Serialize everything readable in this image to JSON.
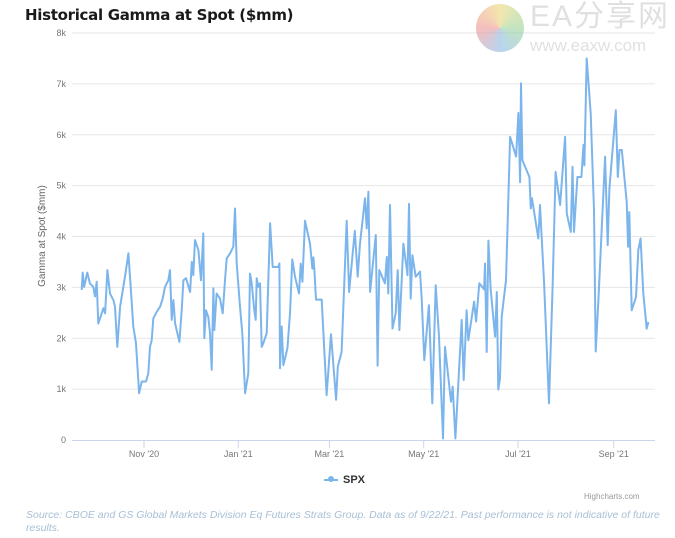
{
  "header": {
    "title": "Historical Gamma at Spot ($mm)"
  },
  "legend": {
    "label": "SPX"
  },
  "credits": "Highcharts.com",
  "source": "Source: CBOE and GS Global Markets Division Eq Futures Strats Group. Data as of 9/22/21. Past performance is not indicative of future results.",
  "watermark": {
    "line1": "EA分享网",
    "line2": "www.eaxw.com"
  },
  "colors": {
    "series": "#7cb5ec",
    "grid": "#e6e6e6",
    "axis": "#ccd6eb"
  },
  "chart_data": {
    "type": "line",
    "title": "Historical Gamma at Spot ($mm)",
    "xlabel": "",
    "ylabel": "Gamma at Spot ($mm)",
    "x_unit": "days since Nov 1, 2020",
    "xlim": [
      -46.6,
      330.7
    ],
    "ylim": [
      0,
      8000
    ],
    "grid": true,
    "legend_position": "bottom-center",
    "x_ticks": [
      {
        "label": "Nov '20",
        "value": 0
      },
      {
        "label": "Jan '21",
        "value": 61
      },
      {
        "label": "Mar '21",
        "value": 120
      },
      {
        "label": "May '21",
        "value": 181
      },
      {
        "label": "Jul '21",
        "value": 242
      },
      {
        "label": "Sep '21",
        "value": 304
      }
    ],
    "y_ticks": [
      {
        "label": "0",
        "value": 0
      },
      {
        "label": "1k",
        "value": 1000
      },
      {
        "label": "2k",
        "value": 2000
      },
      {
        "label": "3k",
        "value": 3000
      },
      {
        "label": "4k",
        "value": 4000
      },
      {
        "label": "5k",
        "value": 5000
      },
      {
        "label": "6k",
        "value": 6000
      },
      {
        "label": "7k",
        "value": 7000
      },
      {
        "label": "8k",
        "value": 8000
      }
    ],
    "series": [
      {
        "name": "SPX",
        "points": [
          [
            -40.3,
            2950
          ],
          [
            -39.7,
            3290
          ],
          [
            -38.8,
            3010
          ],
          [
            -36.7,
            3290
          ],
          [
            -35,
            3080
          ],
          [
            -32.8,
            3010
          ],
          [
            -31.7,
            2820
          ],
          [
            -30.6,
            3110
          ],
          [
            -29.6,
            2290
          ],
          [
            -27.4,
            2490
          ],
          [
            -26.3,
            2590
          ],
          [
            -25.2,
            2490
          ],
          [
            -23.7,
            3340
          ],
          [
            -22,
            2880
          ],
          [
            -19.8,
            2750
          ],
          [
            -18.8,
            2620
          ],
          [
            -17.3,
            1830
          ],
          [
            -15.5,
            2620
          ],
          [
            -12.3,
            3210
          ],
          [
            -10.1,
            3670
          ],
          [
            -8.6,
            3010
          ],
          [
            -6.9,
            2230
          ],
          [
            -5.2,
            1900
          ],
          [
            -3.2,
            920
          ],
          [
            -1.5,
            1150
          ],
          [
            1.3,
            1150
          ],
          [
            2.8,
            1310
          ],
          [
            3.9,
            1830
          ],
          [
            5,
            1960
          ],
          [
            6,
            2390
          ],
          [
            8.2,
            2520
          ],
          [
            10.4,
            2620
          ],
          [
            12.1,
            2780
          ],
          [
            13.6,
            3010
          ],
          [
            15.7,
            3140
          ],
          [
            16.8,
            3340
          ],
          [
            17.9,
            2360
          ],
          [
            19,
            2750
          ],
          [
            20.1,
            2290
          ],
          [
            22.9,
            1930
          ],
          [
            24.4,
            2550
          ],
          [
            25.5,
            3140
          ],
          [
            27.2,
            3180
          ],
          [
            29.8,
            2910
          ],
          [
            30.9,
            3500
          ],
          [
            31.9,
            3240
          ],
          [
            33,
            3930
          ],
          [
            35.2,
            3730
          ],
          [
            36.9,
            3140
          ],
          [
            38.4,
            4060
          ],
          [
            39,
            2000
          ],
          [
            40.1,
            2550
          ],
          [
            41.6,
            2420
          ],
          [
            42.7,
            2100
          ],
          [
            43.8,
            1380
          ],
          [
            44.9,
            2980
          ],
          [
            45.5,
            2160
          ],
          [
            47,
            2880
          ],
          [
            49.2,
            2780
          ],
          [
            50.9,
            2490
          ],
          [
            52.4,
            3140
          ],
          [
            53.5,
            3570
          ],
          [
            55.7,
            3670
          ],
          [
            57.8,
            3800
          ],
          [
            58.9,
            4550
          ],
          [
            60,
            3470
          ],
          [
            62.1,
            2620
          ],
          [
            63.6,
            2100
          ],
          [
            65.4,
            920
          ],
          [
            67.5,
            1310
          ],
          [
            68.6,
            3270
          ],
          [
            69.7,
            3080
          ],
          [
            71.4,
            2550
          ],
          [
            72.3,
            2360
          ],
          [
            72.9,
            3180
          ],
          [
            74,
            3010
          ],
          [
            75.1,
            3080
          ],
          [
            76.2,
            1830
          ],
          [
            77.2,
            1900
          ],
          [
            79.4,
            2100
          ],
          [
            81.6,
            4260
          ],
          [
            83.3,
            3400
          ],
          [
            86.9,
            3400
          ],
          [
            87.6,
            3470
          ],
          [
            88,
            1410
          ],
          [
            89.1,
            2230
          ],
          [
            90.2,
            1470
          ],
          [
            92.8,
            1800
          ],
          [
            94.5,
            2490
          ],
          [
            96,
            3550
          ],
          [
            97.7,
            3210
          ],
          [
            100.3,
            2880
          ],
          [
            101.4,
            3470
          ],
          [
            102.5,
            3110
          ],
          [
            104.2,
            4310
          ],
          [
            107.4,
            3860
          ],
          [
            109,
            3370
          ],
          [
            109.6,
            3590
          ],
          [
            110.3,
            3340
          ],
          [
            111.3,
            2760
          ],
          [
            115,
            2760
          ],
          [
            118.2,
            880
          ],
          [
            121,
            2080
          ],
          [
            124.3,
            790
          ],
          [
            125.4,
            1440
          ],
          [
            127.9,
            1730
          ],
          [
            131.2,
            4310
          ],
          [
            132.7,
            2910
          ],
          [
            136.4,
            4110
          ],
          [
            138.3,
            3210
          ],
          [
            139.8,
            3860
          ],
          [
            143,
            4750
          ],
          [
            144.1,
            4160
          ],
          [
            145.2,
            4880
          ],
          [
            146.3,
            2910
          ],
          [
            150,
            4030
          ],
          [
            151.2,
            1460
          ],
          [
            152.3,
            3340
          ],
          [
            155.9,
            3080
          ],
          [
            157.1,
            3600
          ],
          [
            158.1,
            2880
          ],
          [
            159.2,
            4620
          ],
          [
            160.8,
            2190
          ],
          [
            162.9,
            2490
          ],
          [
            164.2,
            3340
          ],
          [
            165.3,
            2160
          ],
          [
            167.9,
            3860
          ],
          [
            170.5,
            3240
          ],
          [
            171.5,
            4640
          ],
          [
            172.6,
            2780
          ],
          [
            173.7,
            3630
          ],
          [
            175.8,
            3210
          ],
          [
            178.6,
            3310
          ],
          [
            179.7,
            2780
          ],
          [
            181.4,
            1570
          ],
          [
            184.4,
            2650
          ],
          [
            186.6,
            720
          ],
          [
            188.8,
            3040
          ],
          [
            190.9,
            2030
          ],
          [
            193.5,
            30
          ],
          [
            194.8,
            1830
          ],
          [
            198.7,
            750
          ],
          [
            199.8,
            1050
          ],
          [
            201.5,
            30
          ],
          [
            205.6,
            2360
          ],
          [
            206.9,
            1180
          ],
          [
            208.8,
            2550
          ],
          [
            209.9,
            1960
          ],
          [
            213.6,
            2720
          ],
          [
            214.9,
            2330
          ],
          [
            217,
            3080
          ],
          [
            220.1,
            2960
          ],
          [
            220.7,
            3470
          ],
          [
            221.8,
            1730
          ],
          [
            222.9,
            3920
          ],
          [
            224.4,
            2950
          ],
          [
            227.2,
            2030
          ],
          [
            228.3,
            2910
          ],
          [
            229.3,
            990
          ],
          [
            230.4,
            1210
          ],
          [
            231.5,
            2420
          ],
          [
            234.3,
            3140
          ],
          [
            236.9,
            5960
          ],
          [
            240.8,
            5570
          ],
          [
            242.3,
            6430
          ],
          [
            243.4,
            5070
          ],
          [
            244,
            7010
          ],
          [
            244.9,
            5500
          ],
          [
            249.4,
            5170
          ],
          [
            250.3,
            4550
          ],
          [
            251.1,
            4750
          ],
          [
            255.2,
            3960
          ],
          [
            256.3,
            4620
          ],
          [
            258.9,
            3080
          ],
          [
            262.1,
            720
          ],
          [
            264.5,
            3080
          ],
          [
            266.4,
            5270
          ],
          [
            269.3,
            4620
          ],
          [
            272.5,
            5960
          ],
          [
            273.6,
            4450
          ],
          [
            276.2,
            4090
          ],
          [
            277.3,
            5370
          ],
          [
            278.3,
            4090
          ],
          [
            280.5,
            5170
          ],
          [
            283.1,
            5170
          ],
          [
            284.4,
            5800
          ],
          [
            285,
            5400
          ],
          [
            286.5,
            7500
          ],
          [
            289.1,
            6420
          ],
          [
            291.2,
            4520
          ],
          [
            292.3,
            1740
          ],
          [
            294.1,
            2750
          ],
          [
            298.4,
            5570
          ],
          [
            300.1,
            3830
          ],
          [
            301.2,
            4940
          ],
          [
            305.3,
            6480
          ],
          [
            306.6,
            5170
          ],
          [
            307.7,
            5700
          ],
          [
            309.2,
            5700
          ],
          [
            312.4,
            4680
          ],
          [
            313.3,
            3800
          ],
          [
            314.1,
            4480
          ],
          [
            315.6,
            2550
          ],
          [
            318.4,
            2810
          ],
          [
            319.9,
            3730
          ],
          [
            321.4,
            3960
          ],
          [
            323.1,
            2880
          ],
          [
            325.3,
            2190
          ],
          [
            326.4,
            2320
          ]
        ]
      }
    ]
  }
}
